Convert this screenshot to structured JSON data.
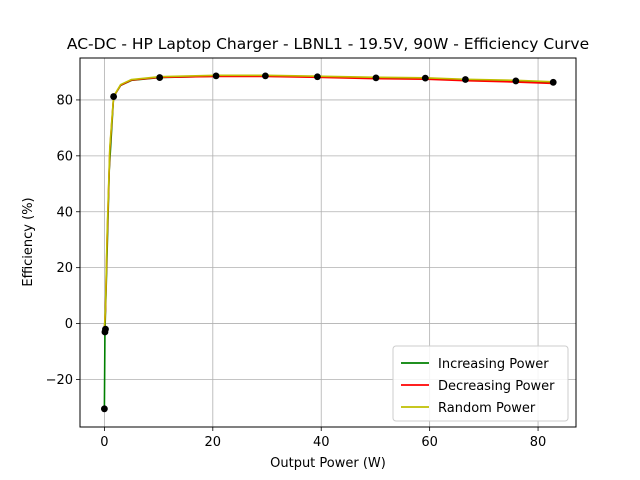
{
  "chart_data": {
    "type": "line",
    "title": "AC-DC - HP Laptop Charger - LBNL1 - 19.5V, 90W - Efficiency Curve",
    "xlabel": "Output Power (W)",
    "ylabel": "Efficiency (%)",
    "xlim": [
      -4.5,
      87
    ],
    "ylim": [
      -37,
      95
    ],
    "xticks": [
      0,
      20,
      40,
      60,
      80
    ],
    "yticks": [
      -20,
      0,
      20,
      40,
      60,
      80
    ],
    "xtick_labels": [
      "0",
      "20",
      "40",
      "60",
      "80"
    ],
    "ytick_labels": [
      "−20",
      "0",
      "20",
      "40",
      "60",
      "80"
    ],
    "grid": true,
    "legend_position": "lower-right",
    "measured_points": {
      "x": [
        0.0,
        0.1,
        0.2,
        1.7,
        10.2,
        20.6,
        29.7,
        39.3,
        50.1,
        59.2,
        66.6,
        75.9,
        82.8
      ],
      "y": [
        -30.5,
        -3.0,
        -2.0,
        81.2,
        88.0,
        88.6,
        88.6,
        88.3,
        87.9,
        87.8,
        87.3,
        86.8,
        86.3
      ]
    },
    "series": [
      {
        "name": "Increasing Power",
        "color": "#008000",
        "x": [
          0.0,
          0.1,
          0.4,
          0.9,
          1.7,
          3.0,
          5.0,
          10.2,
          20.6,
          29.7,
          39.3,
          50.1,
          59.2,
          66.6,
          75.9,
          82.8
        ],
        "y": [
          -30.5,
          -3.0,
          18.0,
          55.0,
          81.2,
          85.2,
          87.0,
          88.0,
          88.5,
          88.5,
          88.2,
          87.8,
          87.6,
          87.1,
          86.6,
          86.1
        ]
      },
      {
        "name": "Decreasing Power",
        "color": "#ff0000",
        "x": [
          0.0,
          0.2,
          0.5,
          1.0,
          1.7,
          3.0,
          5.0,
          10.2,
          20.6,
          29.7,
          39.3,
          50.1,
          59.2,
          66.6,
          75.9,
          82.8
        ],
        "y": [
          -2.5,
          5.0,
          30.0,
          62.0,
          81.2,
          85.3,
          87.1,
          88.1,
          88.4,
          88.4,
          88.1,
          87.6,
          87.4,
          86.9,
          86.4,
          85.9
        ]
      },
      {
        "name": "Random Power",
        "color": "#bfbf00",
        "x": [
          0.0,
          0.2,
          0.5,
          1.0,
          1.7,
          3.0,
          5.0,
          10.2,
          20.6,
          29.7,
          39.3,
          50.1,
          59.2,
          66.6,
          75.9,
          82.8
        ],
        "y": [
          -2.0,
          6.0,
          32.0,
          63.0,
          81.3,
          85.5,
          87.3,
          88.3,
          88.8,
          88.8,
          88.5,
          88.1,
          87.9,
          87.4,
          87.0,
          86.5
        ]
      }
    ]
  }
}
